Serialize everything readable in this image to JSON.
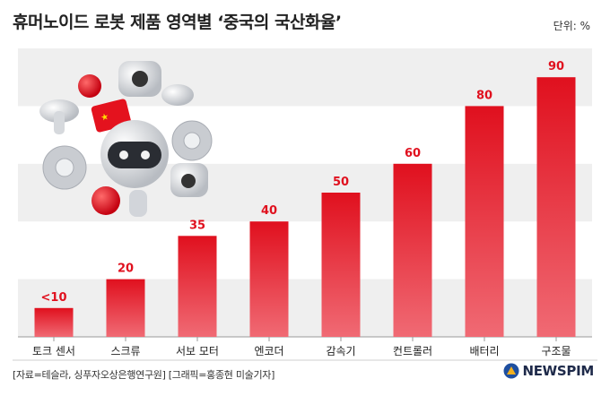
{
  "title": "휴머노이드 로봇 제품 영역별 ‘중국의 국산화율’",
  "unit_label": "단위: %",
  "source": "[자료=테슬라, 싱푸자오상은행연구원] [그래픽=홍종현 미술기자]",
  "brand": "NEWSPIM",
  "colors": {
    "bar_top": "#e0101e",
    "bar_bottom": "#f06a74",
    "label": "#e0101e",
    "band": "#efefef"
  },
  "chart_data": {
    "type": "bar",
    "title": "휴머노이드 로봇 제품 영역별 ‘중국의 국산화율’",
    "xlabel": "",
    "ylabel": "",
    "ylim": [
      0,
      100
    ],
    "categories": [
      "토크 센서",
      "스크류",
      "서보 모터",
      "엔코더",
      "감속기",
      "컨트롤러",
      "배터리",
      "구조물"
    ],
    "values": [
      10,
      20,
      35,
      40,
      50,
      60,
      80,
      90
    ],
    "value_labels": [
      "<10",
      "20",
      "35",
      "40",
      "50",
      "60",
      "80",
      "90"
    ]
  }
}
